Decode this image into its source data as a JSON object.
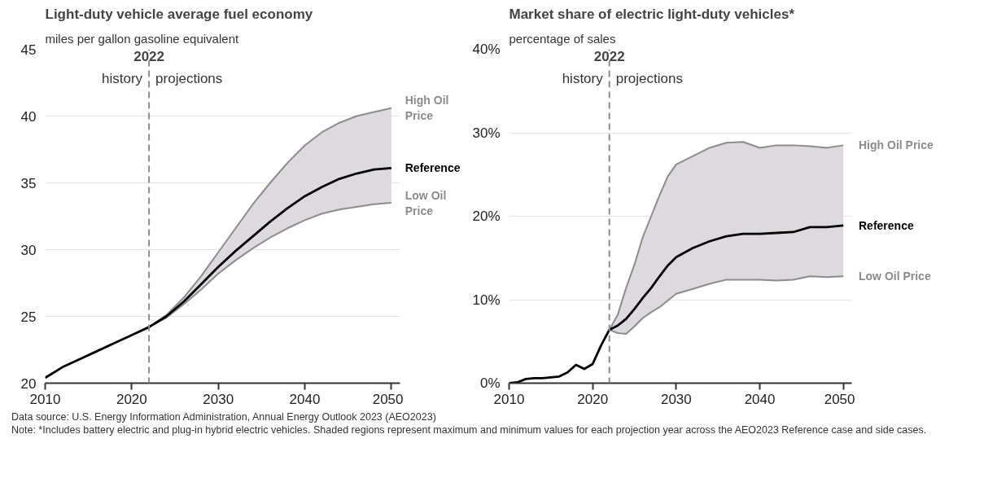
{
  "chart_data": [
    {
      "type": "line",
      "title": "Light-duty vehicle average fuel economy",
      "subtitle": "miles per gallon gasoline equivalent",
      "x": [
        2010,
        2012,
        2014,
        2016,
        2018,
        2020,
        2022,
        2024,
        2026,
        2028,
        2030,
        2032,
        2034,
        2036,
        2038,
        2040,
        2042,
        2044,
        2046,
        2048,
        2050
      ],
      "series": [
        {
          "name": "Reference",
          "color": "#000000",
          "values": [
            20.4,
            21.2,
            21.8,
            22.4,
            23.0,
            23.6,
            24.2,
            25.0,
            26.1,
            27.4,
            28.7,
            29.9,
            31.0,
            32.1,
            33.1,
            34.0,
            34.7,
            35.3,
            35.7,
            36.0,
            36.1
          ],
          "upper": [
            null,
            null,
            null,
            null,
            null,
            null,
            24.2,
            25.1,
            26.4,
            28.0,
            29.8,
            31.6,
            33.4,
            35.0,
            36.5,
            37.8,
            38.8,
            39.5,
            40.0,
            40.3,
            40.6
          ],
          "lower": [
            null,
            null,
            null,
            null,
            null,
            null,
            24.2,
            24.9,
            25.9,
            27.0,
            28.2,
            29.2,
            30.1,
            30.9,
            31.6,
            32.2,
            32.7,
            33.0,
            33.2,
            33.4,
            33.5
          ]
        },
        {
          "name": "High Oil Price",
          "color": "#8c8c8c",
          "values": [
            null,
            null,
            null,
            null,
            null,
            null,
            24.2,
            25.1,
            26.4,
            28.0,
            29.8,
            31.6,
            33.4,
            35.0,
            36.5,
            37.8,
            38.8,
            39.5,
            40.0,
            40.3,
            40.6
          ]
        },
        {
          "name": "Low Oil Price",
          "color": "#8c8c8c",
          "values": [
            null,
            null,
            null,
            null,
            null,
            null,
            24.2,
            24.9,
            25.9,
            27.0,
            28.2,
            29.2,
            30.1,
            30.9,
            31.6,
            32.2,
            32.7,
            33.0,
            33.2,
            33.4,
            33.5
          ]
        }
      ],
      "xlim": [
        2010,
        2051
      ],
      "xticks": [
        2010,
        2020,
        2030,
        2040,
        2050
      ],
      "ylim": [
        20,
        45
      ],
      "yticks": [
        20,
        25,
        30,
        35,
        40,
        45
      ],
      "grid": "y",
      "line_style": "solid",
      "marker": "none",
      "ref_lines": [
        {
          "axis": "x",
          "value": 2022,
          "label": "2022",
          "color": "#8c8c8c",
          "line_style": "dashed"
        }
      ],
      "annotations": [
        "history",
        "projections",
        "Data source: U.S. Energy Information Administration, Annual Energy Outlook 2023 (AEO2023)",
        "Note: *Includes battery electric and plug-in hybrid electric vehicles. Shaded regions represent maximum and minimum values for each projection year across the AEO2023 Reference case and side cases."
      ]
    },
    {
      "type": "line",
      "title": "Market share of electric light-duty vehicles*",
      "subtitle": "percentage of sales",
      "x": [
        2010,
        2011,
        2012,
        2013,
        2014,
        2015,
        2016,
        2017,
        2018,
        2019,
        2020,
        2021,
        2022,
        2023,
        2024,
        2025,
        2026,
        2027,
        2028,
        2029,
        2030,
        2032,
        2034,
        2036,
        2038,
        2040,
        2042,
        2044,
        2046,
        2048,
        2050
      ],
      "series": [
        {
          "name": "Reference",
          "color": "#000000",
          "values": [
            0,
            0.1,
            0.5,
            0.6,
            0.6,
            0.7,
            0.8,
            1.3,
            2.2,
            1.7,
            2.3,
            4.5,
            6.4,
            6.9,
            7.7,
            8.9,
            10.2,
            11.4,
            12.8,
            14.1,
            15.1,
            16.2,
            17.0,
            17.6,
            17.9,
            17.9,
            18.0,
            18.1,
            18.7,
            18.7,
            18.9
          ],
          "upper": [
            null,
            null,
            null,
            null,
            null,
            null,
            null,
            null,
            null,
            null,
            null,
            null,
            6.4,
            8.2,
            11.4,
            14.2,
            17.5,
            20.0,
            22.5,
            24.8,
            26.2,
            27.2,
            28.2,
            28.8,
            28.9,
            28.2,
            28.5,
            28.5,
            28.4,
            28.2,
            28.5
          ],
          "lower": [
            null,
            null,
            null,
            null,
            null,
            null,
            null,
            null,
            null,
            null,
            null,
            null,
            6.4,
            6.0,
            5.9,
            6.8,
            7.8,
            8.5,
            9.1,
            9.9,
            10.7,
            11.3,
            11.9,
            12.4,
            12.4,
            12.4,
            12.3,
            12.4,
            12.8,
            12.7,
            12.8
          ]
        },
        {
          "name": "High Oil Price",
          "color": "#8c8c8c",
          "values": [
            null,
            null,
            null,
            null,
            null,
            null,
            null,
            null,
            null,
            null,
            null,
            null,
            6.4,
            8.2,
            11.4,
            14.2,
            17.5,
            20.0,
            22.5,
            24.8,
            26.2,
            27.2,
            28.2,
            28.8,
            28.9,
            28.2,
            28.5,
            28.5,
            28.4,
            28.2,
            28.5
          ]
        },
        {
          "name": "Low Oil Price",
          "color": "#8c8c8c",
          "values": [
            null,
            null,
            null,
            null,
            null,
            null,
            null,
            null,
            null,
            null,
            null,
            null,
            6.4,
            6.0,
            5.9,
            6.8,
            7.8,
            8.5,
            9.1,
            9.9,
            10.7,
            11.3,
            11.9,
            12.4,
            12.4,
            12.4,
            12.3,
            12.4,
            12.8,
            12.7,
            12.8
          ]
        }
      ],
      "xlim": [
        2010,
        2051
      ],
      "xticks": [
        2010,
        2020,
        2030,
        2040,
        2050
      ],
      "ylim": [
        0,
        40
      ],
      "yticks": [
        {
          "value": 0,
          "label": "0%"
        },
        {
          "value": 10,
          "label": "10%"
        },
        {
          "value": 20,
          "label": "20%"
        },
        {
          "value": 30,
          "label": "30%"
        },
        {
          "value": 40,
          "label": "40%"
        }
      ],
      "grid": "y",
      "line_style": "solid",
      "marker": "none",
      "ref_lines": [
        {
          "axis": "x",
          "value": 2022,
          "label": "2022",
          "color": "#8c8c8c",
          "line_style": "dashed"
        }
      ],
      "annotations": [
        "history",
        "projections"
      ]
    }
  ]
}
